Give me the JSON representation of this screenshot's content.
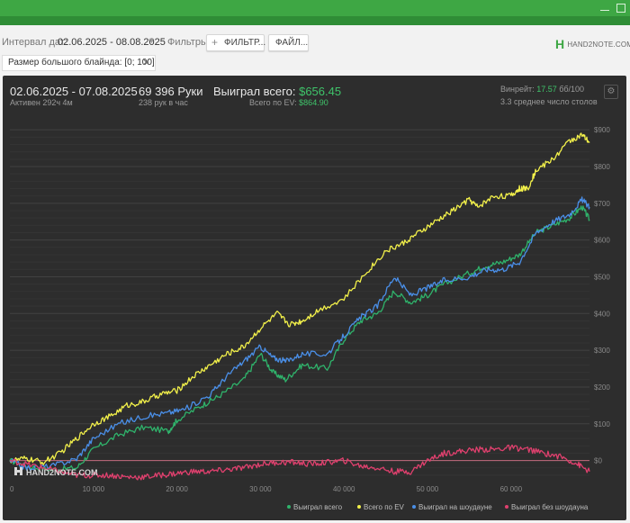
{
  "toolbar": {
    "range_label": "Интервал дат:",
    "range_value": "02.06.2025 - 08.08.2025",
    "filters_label": "Фильтры:",
    "filter_button": "ФИЛЬТР...",
    "file_button": "ФАЙЛ...",
    "logo": "HAND2NOTE.COM"
  },
  "filter_chip": {
    "label": "Размер большого блайнда: [0; 100]"
  },
  "summary": {
    "date_range": "02.06.2025 - 07.08.2025",
    "active_time": "Активен 292ч 4м",
    "hands": "69 396 Руки",
    "hands_per_hour": "238 рук в час",
    "won_total_label": "Выиграл всего:",
    "won_total_value": "$656.45",
    "ev_total_label": "Всего по EV:",
    "ev_total_value": "$864.90",
    "winrate_label": "Винрейт:",
    "winrate_value": "17.57",
    "winrate_unit": "бб/100",
    "avg_tables": "3.3 среднее число столов"
  },
  "colors": {
    "won": "#2fb36b",
    "ev": "#f2f04a",
    "showdown": "#4a8fe8",
    "nonshowdown": "#e0406e"
  },
  "watermark": "HAND2NOTE.COM",
  "chart_data": {
    "type": "line",
    "xlim": [
      0,
      69396
    ],
    "ylim": [
      -50,
      920
    ],
    "x_ticks": [
      0,
      10000,
      20000,
      30000,
      40000,
      50000,
      60000
    ],
    "x_tick_labels": [
      "0",
      "10 000",
      "20 000",
      "30 000",
      "40 000",
      "50 000",
      "60 000"
    ],
    "y_ticks": [
      0,
      100,
      200,
      300,
      400,
      500,
      600,
      700,
      800,
      900
    ],
    "y_tick_labels": [
      "$0",
      "$100",
      "$200",
      "$300",
      "$400",
      "$500",
      "$600",
      "$700",
      "$800",
      "$900"
    ],
    "grid": true,
    "legend_position": "bottom-right",
    "series": [
      {
        "name": "Выиграл всего",
        "color_key": "won",
        "points": [
          [
            0,
            0
          ],
          [
            2000,
            -15
          ],
          [
            5000,
            -25
          ],
          [
            8000,
            -20
          ],
          [
            10000,
            30
          ],
          [
            13000,
            70
          ],
          [
            16000,
            90
          ],
          [
            19000,
            80
          ],
          [
            20000,
            110
          ],
          [
            23000,
            150
          ],
          [
            25000,
            175
          ],
          [
            28000,
            220
          ],
          [
            30000,
            290
          ],
          [
            31500,
            240
          ],
          [
            33000,
            220
          ],
          [
            35000,
            260
          ],
          [
            38000,
            250
          ],
          [
            40000,
            330
          ],
          [
            42000,
            380
          ],
          [
            44000,
            400
          ],
          [
            46000,
            460
          ],
          [
            48000,
            430
          ],
          [
            50000,
            450
          ],
          [
            52000,
            480
          ],
          [
            55000,
            510
          ],
          [
            57000,
            530
          ],
          [
            59000,
            540
          ],
          [
            61000,
            560
          ],
          [
            63000,
            620
          ],
          [
            65000,
            640
          ],
          [
            67000,
            660
          ],
          [
            68500,
            690
          ],
          [
            69396,
            656
          ]
        ]
      },
      {
        "name": "Всего по EV",
        "color_key": "ev",
        "points": [
          [
            0,
            0
          ],
          [
            2000,
            5
          ],
          [
            4000,
            -5
          ],
          [
            6000,
            20
          ],
          [
            8000,
            60
          ],
          [
            10000,
            100
          ],
          [
            12000,
            120
          ],
          [
            14000,
            150
          ],
          [
            16000,
            160
          ],
          [
            18000,
            180
          ],
          [
            20000,
            190
          ],
          [
            22000,
            230
          ],
          [
            24000,
            260
          ],
          [
            26000,
            290
          ],
          [
            28000,
            310
          ],
          [
            30000,
            360
          ],
          [
            32000,
            400
          ],
          [
            33500,
            370
          ],
          [
            35000,
            380
          ],
          [
            37000,
            410
          ],
          [
            40000,
            440
          ],
          [
            43000,
            520
          ],
          [
            45000,
            570
          ],
          [
            47000,
            590
          ],
          [
            49000,
            620
          ],
          [
            51000,
            650
          ],
          [
            53000,
            680
          ],
          [
            55000,
            710
          ],
          [
            56000,
            690
          ],
          [
            58000,
            720
          ],
          [
            60000,
            720
          ],
          [
            61000,
            740
          ],
          [
            62000,
            740
          ],
          [
            63000,
            790
          ],
          [
            65000,
            820
          ],
          [
            67000,
            870
          ],
          [
            68500,
            885
          ],
          [
            69396,
            865
          ]
        ]
      },
      {
        "name": "Выиграл на шоудауне",
        "color_key": "showdown",
        "points": [
          [
            0,
            0
          ],
          [
            2000,
            -20
          ],
          [
            5000,
            -15
          ],
          [
            8000,
            5
          ],
          [
            10000,
            60
          ],
          [
            13000,
            100
          ],
          [
            16000,
            120
          ],
          [
            19000,
            130
          ],
          [
            21000,
            140
          ],
          [
            24000,
            180
          ],
          [
            26000,
            230
          ],
          [
            28000,
            270
          ],
          [
            30000,
            310
          ],
          [
            31500,
            280
          ],
          [
            33000,
            270
          ],
          [
            35000,
            290
          ],
          [
            38000,
            290
          ],
          [
            40000,
            340
          ],
          [
            42000,
            390
          ],
          [
            44000,
            420
          ],
          [
            46000,
            500
          ],
          [
            48000,
            450
          ],
          [
            50000,
            470
          ],
          [
            52000,
            490
          ],
          [
            55000,
            500
          ],
          [
            57000,
            520
          ],
          [
            59000,
            520
          ],
          [
            61000,
            540
          ],
          [
            63000,
            620
          ],
          [
            65000,
            650
          ],
          [
            67000,
            670
          ],
          [
            68500,
            710
          ],
          [
            69396,
            690
          ]
        ]
      },
      {
        "name": "Выиграл без шоудауна",
        "color_key": "nonshowdown",
        "points": [
          [
            0,
            0
          ],
          [
            2000,
            -10
          ],
          [
            4000,
            -20
          ],
          [
            6000,
            -30
          ],
          [
            8000,
            -40
          ],
          [
            10000,
            -40
          ],
          [
            12000,
            -40
          ],
          [
            14000,
            -45
          ],
          [
            16000,
            -45
          ],
          [
            18000,
            -40
          ],
          [
            20000,
            -35
          ],
          [
            22000,
            -30
          ],
          [
            24000,
            -30
          ],
          [
            26000,
            -25
          ],
          [
            28000,
            -20
          ],
          [
            30000,
            -10
          ],
          [
            32000,
            -5
          ],
          [
            34000,
            -5
          ],
          [
            36000,
            -10
          ],
          [
            38000,
            -5
          ],
          [
            40000,
            0
          ],
          [
            42000,
            -15
          ],
          [
            44000,
            -20
          ],
          [
            46000,
            -30
          ],
          [
            48000,
            -30
          ],
          [
            50000,
            0
          ],
          [
            52000,
            20
          ],
          [
            54000,
            25
          ],
          [
            56000,
            30
          ],
          [
            58000,
            30
          ],
          [
            60000,
            35
          ],
          [
            62000,
            30
          ],
          [
            64000,
            20
          ],
          [
            66000,
            10
          ],
          [
            68000,
            -10
          ],
          [
            69396,
            -30
          ]
        ]
      }
    ]
  }
}
